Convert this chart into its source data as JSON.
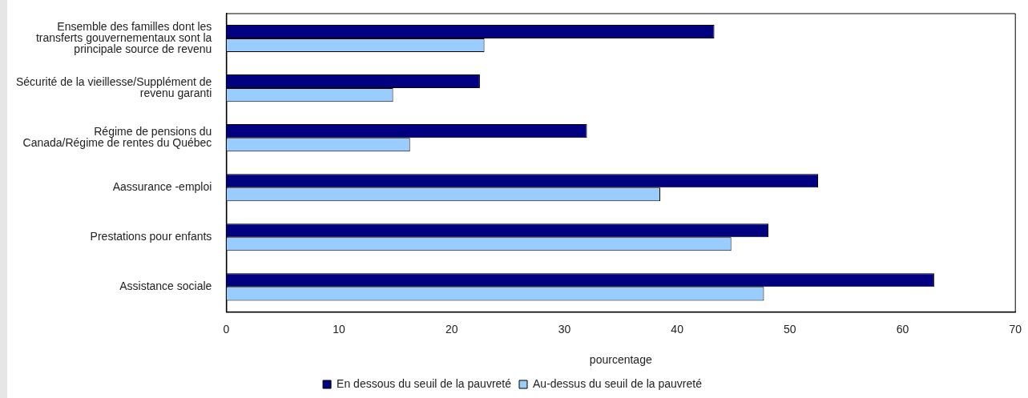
{
  "chart_data": {
    "type": "bar",
    "orientation": "horizontal",
    "xlabel": "pourcentage",
    "categories": [
      "Ensemble des familles dont les transferts gouvernementaux sont la principale source de revenu",
      "Sécurité de la vieillesse/Supplément de revenu garanti",
      "Régime de pensions du Canada/Régime de rentes du Québec",
      "Aassurance -emploi",
      "Prestations pour enfants",
      "Assistance sociale"
    ],
    "series": [
      {
        "name": "En dessous du seuil de la pauvreté",
        "color": "#000080",
        "values": [
          43.3,
          22.5,
          32.0,
          52.5,
          48.1,
          62.8
        ]
      },
      {
        "name": "Au-dessus du seuil de la pauvreté",
        "color": "#99ccff",
        "values": [
          22.9,
          14.8,
          16.3,
          38.5,
          44.8,
          47.7
        ]
      }
    ],
    "xlim": [
      0,
      70
    ],
    "xticks": [
      0,
      10,
      20,
      30,
      40,
      50,
      60,
      70
    ],
    "grid": false,
    "legend": "bottom"
  }
}
